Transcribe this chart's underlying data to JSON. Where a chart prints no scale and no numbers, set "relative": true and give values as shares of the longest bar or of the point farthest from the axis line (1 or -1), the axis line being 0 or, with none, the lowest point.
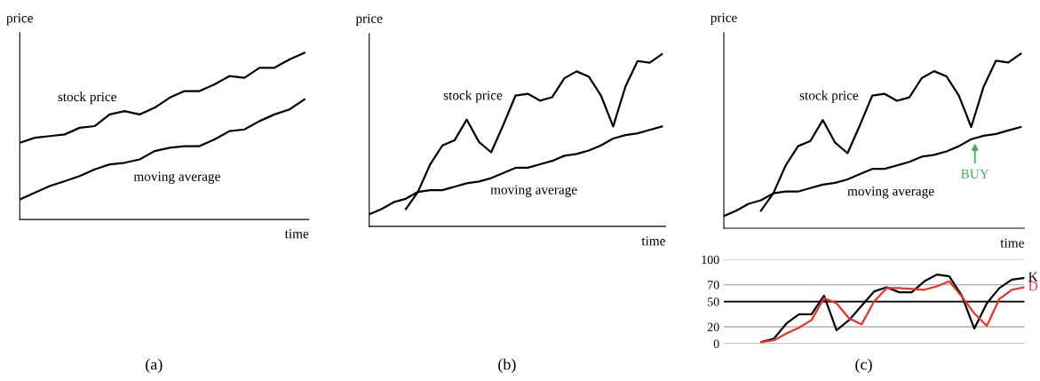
{
  "chart_data": [
    {
      "type": "line",
      "relative": true,
      "xlabel": "time",
      "ylabel": "price",
      "categories": [
        null,
        null,
        null,
        null,
        null,
        null,
        null,
        null,
        null,
        null,
        null,
        null,
        null,
        null,
        null,
        null,
        null,
        null,
        null,
        null
      ],
      "legend": false,
      "grid": false,
      "series": [
        {
          "name": "stock price",
          "color": "#000000",
          "values": [
            0.46,
            0.49,
            0.5,
            0.51,
            0.55,
            0.56,
            0.63,
            0.65,
            0.63,
            0.67,
            0.73,
            0.77,
            0.77,
            0.81,
            0.86,
            0.85,
            0.91,
            0.91,
            0.96,
            1.0
          ]
        },
        {
          "name": "moving average",
          "color": "#000000",
          "values": [
            0.12,
            0.16,
            0.2,
            0.23,
            0.26,
            0.3,
            0.33,
            0.34,
            0.36,
            0.41,
            0.43,
            0.44,
            0.44,
            0.48,
            0.53,
            0.54,
            0.59,
            0.63,
            0.66,
            0.72
          ]
        }
      ],
      "annotations": [
        "(a)"
      ]
    },
    {
      "type": "line",
      "relative": true,
      "xlabel": "time",
      "ylabel": "price",
      "categories": [
        null,
        null,
        null,
        null,
        null,
        null,
        null,
        null,
        null,
        null,
        null,
        null,
        null,
        null,
        null,
        null,
        null,
        null,
        null,
        null,
        null,
        null,
        null,
        null,
        null
      ],
      "legend": false,
      "grid": false,
      "series": [
        {
          "name": "stock price",
          "color": "#000000",
          "values": [
            null,
            null,
            null,
            0.1,
            0.2,
            0.36,
            0.47,
            0.5,
            0.62,
            0.49,
            0.43,
            0.59,
            0.76,
            0.77,
            0.73,
            0.75,
            0.86,
            0.9,
            0.87,
            0.76,
            0.58,
            0.81,
            0.96,
            0.95,
            1.0
          ]
        },
        {
          "name": "moving average",
          "color": "#000000",
          "values": [
            0.07,
            0.1,
            0.14,
            0.16,
            0.2,
            0.21,
            0.21,
            0.23,
            0.25,
            0.26,
            0.28,
            0.31,
            0.34,
            0.34,
            0.36,
            0.38,
            0.41,
            0.42,
            0.44,
            0.47,
            0.51,
            0.53,
            0.54,
            0.56,
            0.58
          ]
        }
      ],
      "annotations": [
        "(b)"
      ]
    },
    {
      "type": "line",
      "relative": true,
      "xlabel": "time",
      "ylabel": "price",
      "categories": [
        null,
        null,
        null,
        null,
        null,
        null,
        null,
        null,
        null,
        null,
        null,
        null,
        null,
        null,
        null,
        null,
        null,
        null,
        null,
        null,
        null,
        null,
        null,
        null,
        null
      ],
      "legend": false,
      "grid": false,
      "series": [
        {
          "name": "stock price",
          "color": "#000000",
          "values": [
            null,
            null,
            null,
            0.1,
            0.2,
            0.36,
            0.47,
            0.5,
            0.62,
            0.49,
            0.43,
            0.59,
            0.76,
            0.77,
            0.73,
            0.75,
            0.86,
            0.9,
            0.87,
            0.76,
            0.58,
            0.81,
            0.96,
            0.95,
            1.0
          ]
        },
        {
          "name": "moving average",
          "color": "#000000",
          "values": [
            0.07,
            0.1,
            0.14,
            0.16,
            0.2,
            0.21,
            0.21,
            0.23,
            0.25,
            0.26,
            0.28,
            0.31,
            0.34,
            0.34,
            0.36,
            0.38,
            0.41,
            0.42,
            0.44,
            0.47,
            0.51,
            0.53,
            0.54,
            0.56,
            0.58
          ]
        }
      ],
      "annotations": [
        {
          "text": "BUY",
          "y": 0.47
        }
      ]
    },
    {
      "type": "line",
      "categories": [
        null,
        null,
        null,
        null,
        null,
        null,
        null,
        null,
        null,
        null,
        null,
        null,
        null,
        null,
        null,
        null,
        null,
        null,
        null,
        null,
        null,
        null,
        null,
        null,
        null
      ],
      "ylim": [
        0,
        100
      ],
      "yticks": [
        0,
        20,
        50,
        70,
        100
      ],
      "grid": "y",
      "tick_labels": "y",
      "legend": false,
      "ref_lines": [
        {
          "axis": "y",
          "value": 50,
          "color": "#000000"
        }
      ],
      "series": [
        {
          "name": "K",
          "color": "#000000",
          "values": [
            null,
            null,
            null,
            2,
            6,
            24,
            35,
            35,
            57,
            16,
            28,
            45,
            62,
            67,
            61,
            61,
            74,
            82,
            80,
            57,
            18,
            48,
            66,
            76,
            78
          ]
        },
        {
          "name": "D",
          "color": "#e8322a",
          "values": [
            null,
            null,
            null,
            2,
            4,
            12,
            19,
            28,
            54,
            48,
            30,
            23,
            50,
            66,
            66,
            65,
            64,
            68,
            74,
            56,
            36,
            21,
            53,
            64,
            67
          ]
        }
      ],
      "annotations": [
        "(c)"
      ]
    }
  ]
}
